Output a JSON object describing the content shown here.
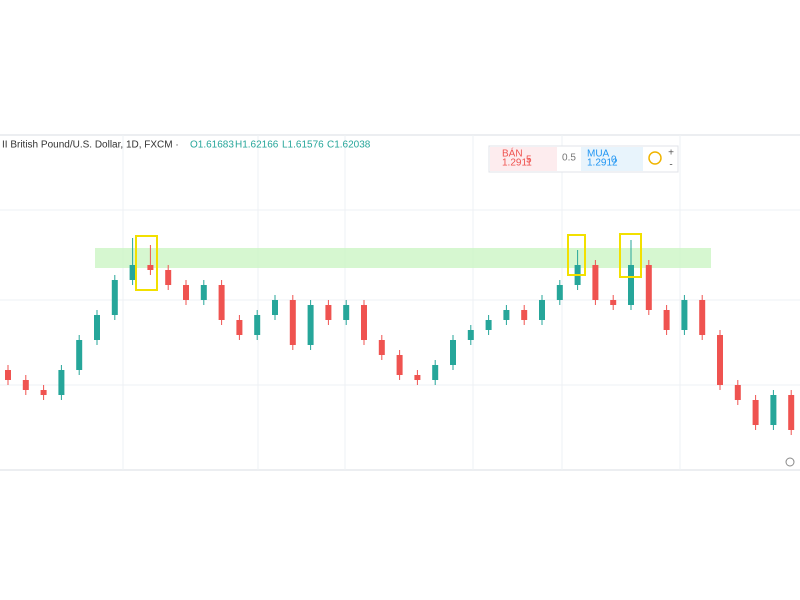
{
  "header": {
    "symbol": "II British Pound/U.S. Dollar, 1D, FXCM ·",
    "open": "O1.61683",
    "high": "H1.62166",
    "low": "L1.61576",
    "close": "C1.62038"
  },
  "trade": {
    "sell_label": "BÁN",
    "sell_price": "1.2911",
    "sell_pip": "5",
    "spread": "0.5",
    "buy_label": "MUA",
    "buy_price": "1.2912",
    "buy_pip": "0"
  },
  "chart_data": {
    "type": "candlestick",
    "open": [
      1.613,
      1.611,
      1.609,
      1.608,
      1.613,
      1.619,
      1.624,
      1.631,
      1.634,
      1.633,
      1.63,
      1.627,
      1.63,
      1.623,
      1.62,
      1.624,
      1.627,
      1.618,
      1.626,
      1.623,
      1.626,
      1.619,
      1.616,
      1.612,
      1.611,
      1.614,
      1.619,
      1.621,
      1.623,
      1.625,
      1.623,
      1.627,
      1.63,
      1.634,
      1.627,
      1.626,
      1.634,
      1.625,
      1.621,
      1.627,
      1.62,
      1.61,
      1.607,
      1.602,
      1.608
    ],
    "high": [
      1.614,
      1.612,
      1.61,
      1.614,
      1.62,
      1.625,
      1.632,
      1.6394,
      1.638,
      1.634,
      1.631,
      1.631,
      1.631,
      1.624,
      1.625,
      1.628,
      1.628,
      1.627,
      1.627,
      1.627,
      1.627,
      1.62,
      1.617,
      1.613,
      1.615,
      1.62,
      1.622,
      1.624,
      1.626,
      1.626,
      1.628,
      1.631,
      1.637,
      1.635,
      1.628,
      1.639,
      1.635,
      1.626,
      1.628,
      1.628,
      1.621,
      1.611,
      1.608,
      1.609,
      1.609
    ],
    "low": [
      1.61,
      1.608,
      1.607,
      1.607,
      1.612,
      1.618,
      1.623,
      1.63,
      1.632,
      1.629,
      1.626,
      1.626,
      1.622,
      1.619,
      1.619,
      1.623,
      1.617,
      1.617,
      1.622,
      1.622,
      1.618,
      1.615,
      1.611,
      1.61,
      1.61,
      1.613,
      1.618,
      1.62,
      1.622,
      1.622,
      1.622,
      1.626,
      1.629,
      1.626,
      1.625,
      1.625,
      1.624,
      1.62,
      1.62,
      1.619,
      1.609,
      1.606,
      1.601,
      1.601,
      1.6
    ],
    "close": [
      1.611,
      1.609,
      1.608,
      1.613,
      1.619,
      1.624,
      1.631,
      1.634,
      1.633,
      1.63,
      1.627,
      1.63,
      1.623,
      1.62,
      1.624,
      1.627,
      1.618,
      1.626,
      1.623,
      1.626,
      1.619,
      1.616,
      1.612,
      1.611,
      1.614,
      1.619,
      1.621,
      1.623,
      1.625,
      1.623,
      1.627,
      1.63,
      1.634,
      1.627,
      1.626,
      1.634,
      1.625,
      1.621,
      1.627,
      1.62,
      1.61,
      1.607,
      1.602,
      1.608,
      1.601
    ],
    "ylim": [
      1.593,
      1.66
    ],
    "zone": [
      1.6334,
      1.6374
    ],
    "up_color": "#26a69a",
    "down_color": "#ef5350",
    "zone_color": "#ccf5c4"
  }
}
